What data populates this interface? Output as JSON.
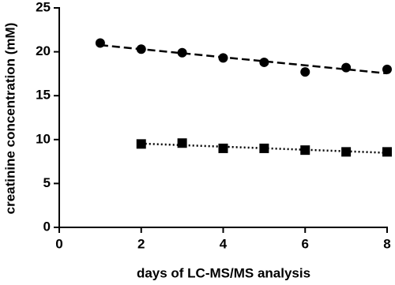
{
  "chart_data": {
    "type": "scatter",
    "xlabel": "days of LC-MS/MS analysis",
    "ylabel": "creatinine concentration (mM)",
    "xlim": [
      0,
      8
    ],
    "xticks": [
      0,
      2,
      4,
      6,
      8
    ],
    "ylim": [
      0,
      25
    ],
    "yticks": [
      0,
      5,
      10,
      15,
      20,
      25
    ],
    "trendline": true,
    "series": [
      {
        "marker": "circle",
        "color": "#000000",
        "line_dash": "10 5",
        "x": [
          1,
          2,
          3,
          4,
          5,
          6,
          7,
          8
        ],
        "values": [
          21.0,
          20.3,
          19.9,
          19.3,
          18.8,
          17.7,
          18.2,
          18.0
        ]
      },
      {
        "marker": "square",
        "color": "#000000",
        "line_dash": "2 3",
        "x": [
          2,
          3,
          4,
          5,
          6,
          7,
          8
        ],
        "values": [
          9.5,
          9.6,
          9.0,
          9.0,
          8.8,
          8.6,
          8.6
        ]
      }
    ]
  }
}
